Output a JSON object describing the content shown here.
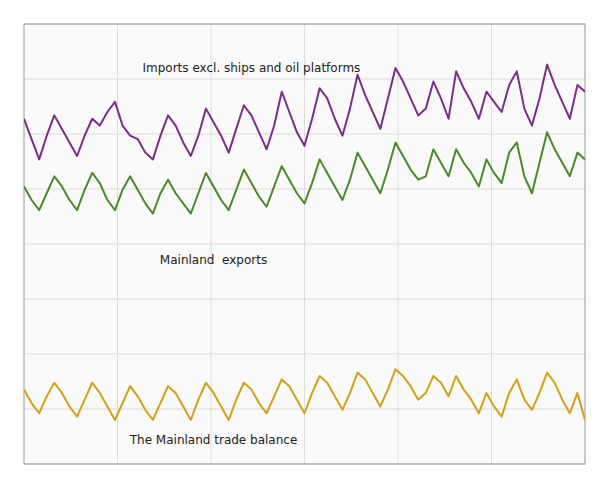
{
  "chart_data": {
    "type": "line",
    "x": [
      0,
      1,
      2,
      3,
      4,
      5,
      6,
      7,
      8,
      9,
      10,
      11,
      12,
      13,
      14,
      15,
      16,
      17,
      18,
      19,
      20,
      21,
      22,
      23,
      24,
      25,
      26,
      27,
      28,
      29,
      30,
      31,
      32,
      33,
      34,
      35,
      36,
      37,
      38,
      39,
      40,
      41,
      42,
      43,
      44,
      45,
      46,
      47,
      48,
      49,
      50,
      51,
      52,
      53,
      54,
      55,
      56,
      57,
      58,
      59,
      60,
      61,
      62,
      63,
      64,
      65,
      66,
      67,
      68,
      69,
      70,
      71,
      72,
      73,
      74
    ],
    "series": [
      {
        "color": "#7b2d8b",
        "values": [
          62,
          56,
          50,
          57,
          63,
          59,
          55,
          51,
          57,
          62,
          60,
          64,
          67,
          60,
          57,
          56,
          52,
          50,
          57,
          63,
          60,
          55,
          51,
          57,
          65,
          61,
          57,
          52,
          59,
          66,
          63,
          58,
          53,
          60,
          70,
          64,
          58,
          54,
          62,
          71,
          68,
          62,
          57,
          65,
          75,
          69,
          64,
          59,
          68,
          77,
          73,
          68,
          63,
          65,
          73,
          68,
          62,
          76,
          71,
          67,
          62,
          70,
          67,
          64,
          72,
          76,
          65,
          60,
          68,
          78,
          72,
          67,
          62,
          72,
          70
        ]
      },
      {
        "color": "#4a8a2a",
        "values": [
          42,
          38,
          35,
          40,
          45,
          42,
          38,
          35,
          41,
          46,
          43,
          38,
          35,
          41,
          45,
          41,
          37,
          34,
          40,
          44,
          40,
          37,
          34,
          40,
          46,
          42,
          38,
          35,
          41,
          47,
          43,
          39,
          36,
          42,
          48,
          44,
          40,
          37,
          43,
          50,
          46,
          42,
          38,
          44,
          52,
          48,
          44,
          40,
          47,
          55,
          51,
          47,
          44,
          45,
          53,
          49,
          45,
          53,
          49,
          46,
          42,
          50,
          46,
          43,
          52,
          55,
          45,
          40,
          49,
          58,
          53,
          49,
          45,
          52,
          50
        ]
      },
      {
        "color": "#d4a017",
        "values": [
          -18,
          -22,
          -25,
          -20,
          -16,
          -19,
          -23,
          -26,
          -21,
          -16,
          -19,
          -23,
          -27,
          -22,
          -17,
          -20,
          -24,
          -27,
          -22,
          -17,
          -19,
          -23,
          -27,
          -21,
          -16,
          -19,
          -23,
          -27,
          -21,
          -16,
          -18,
          -22,
          -25,
          -20,
          -15,
          -17,
          -21,
          -25,
          -19,
          -14,
          -16,
          -20,
          -24,
          -19,
          -13,
          -15,
          -19,
          -23,
          -18,
          -12,
          -14,
          -17,
          -21,
          -19,
          -14,
          -16,
          -20,
          -14,
          -18,
          -21,
          -25,
          -19,
          -23,
          -26,
          -19,
          -15,
          -21,
          -24,
          -19,
          -13,
          -16,
          -21,
          -25,
          -19,
          -27
        ]
      }
    ],
    "annotations": [
      {
        "text": "Imports excl. ships and oil platforms",
        "x": 30,
        "y": 77
      },
      {
        "text": "Mainland  exports",
        "x": 25,
        "y": 20
      },
      {
        "text": "The Mainland trade balance",
        "x": 25,
        "y": -33
      }
    ],
    "xlim": [
      0,
      74
    ],
    "xticks": [
      12.333333333333334,
      24.666666666666668,
      37,
      49.333333333333336,
      61.666666666666664
    ],
    "ylim": [
      -40,
      90
    ],
    "yticks": [
      -40,
      -23.75,
      -7.5,
      8.75,
      25,
      41.25,
      57.5,
      73.75,
      90
    ],
    "grid": true,
    "tick_labels": false
  }
}
